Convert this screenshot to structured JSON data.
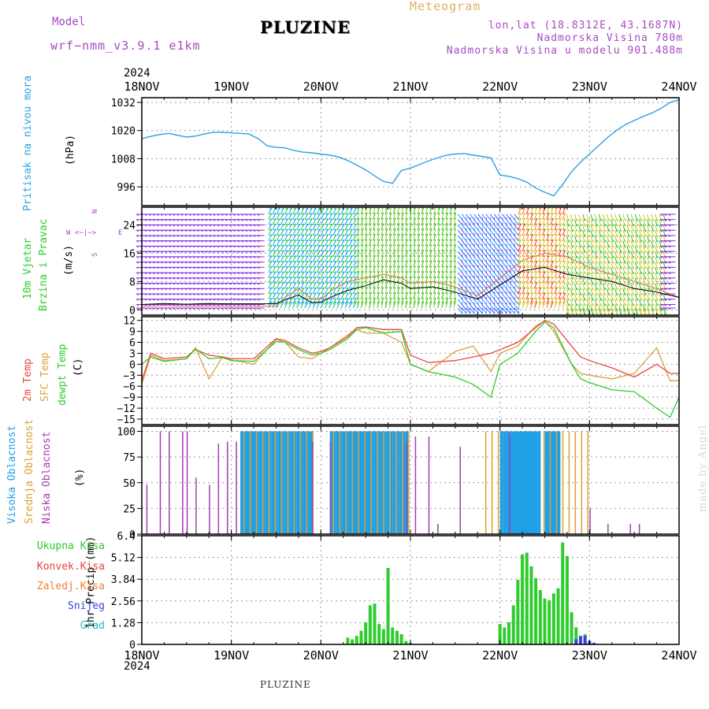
{
  "header": {
    "model_label": "Model",
    "model_name": "wrf−nmm_v3.9.1  e1km",
    "station": "PLUZINE",
    "meteogram_label": "Meteogram",
    "lonlat": "lon,lat (18.8312E, 43.1687N)",
    "altitude": "Nadmorska Visina 780m",
    "model_altitude": "Nadmorska Visina u modelu 901.488m"
  },
  "footer": {
    "station": "PLUZINE",
    "credit": "made by Angel"
  },
  "time_axis": {
    "year": "2024",
    "ticks": [
      "18NOV",
      "19NOV",
      "20NOV",
      "21NOV",
      "22NOV",
      "23NOV",
      "24NOV"
    ]
  },
  "colors": {
    "pressure": "#29a3e0",
    "temp2m": "#e8483c",
    "sfc_temp": "#e0a040",
    "dewpt": "#2ecc2e",
    "cloud_high": "#1fa0e6",
    "cloud_mid": "#e0a030",
    "cloud_low": "#a040b0",
    "precip_total": "#2ecc2e",
    "precip_conv": "#e84040",
    "precip_frozen": "#f08030",
    "snow": "#4040e0",
    "graupel": "#20c0c0"
  },
  "chart_data": [
    {
      "type": "line",
      "name_panel": "pressure",
      "ylabel_1": "Pritisak na nivou mora",
      "ylabel_2": "(hPa)",
      "yticks": [
        "1032",
        "1020",
        "1008",
        "996"
      ],
      "ylim": [
        988,
        1034
      ],
      "x_days": [
        0,
        0.1,
        0.2,
        0.3,
        0.4,
        0.5,
        0.6,
        0.7,
        0.8,
        0.9,
        1.0,
        1.1,
        1.2,
        1.3,
        1.4,
        1.5,
        1.6,
        1.7,
        1.8,
        1.9,
        2.0,
        2.1,
        2.2,
        2.3,
        2.4,
        2.5,
        2.6,
        2.7,
        2.8,
        2.9,
        3.0,
        3.1,
        3.2,
        3.3,
        3.4,
        3.5,
        3.6,
        3.7,
        3.8,
        3.9,
        4.0,
        4.1,
        4.2,
        4.3,
        4.4,
        4.5,
        4.6,
        4.7,
        4.8,
        4.9,
        5.0,
        5.1,
        5.2,
        5.3,
        5.4,
        5.5,
        5.6,
        5.7,
        5.8,
        5.9,
        6.0
      ],
      "series": [
        {
          "values": [
            1016.5,
            1017.5,
            1018.3,
            1018.8,
            1018.0,
            1017.2,
            1017.6,
            1018.6,
            1019.2,
            1019.3,
            1019.0,
            1018.8,
            1018.5,
            1016.5,
            1013.5,
            1012.8,
            1012.6,
            1011.5,
            1010.8,
            1010.5,
            1010.0,
            1009.5,
            1008.7,
            1007.2,
            1005.3,
            1003.2,
            1000.7,
            998.3,
            997.5,
            1003.0,
            1004.0,
            1005.5,
            1007.0,
            1008.3,
            1009.5,
            1010.0,
            1010.2,
            1009.5,
            1009.0,
            1008.3,
            1001.0,
            1000.5,
            999.5,
            998.0,
            995.5,
            993.7,
            992.2,
            997.0,
            1002.5,
            1006.5,
            1010.0,
            1013.5,
            1017.0,
            1020.0,
            1022.5,
            1024.3,
            1026.0,
            1027.5,
            1029.5,
            1032.0,
            1033.2
          ]
        }
      ]
    },
    {
      "type": "line",
      "name_panel": "wind",
      "ylabel_1": "10m Vjetar",
      "ylabel_2": "Brzina i Pravac",
      "ylabel_3": "(m/s)",
      "compass": {
        "n": "N",
        "s": "S",
        "e": "E",
        "w": "W"
      },
      "yticks": [
        "24",
        "16",
        "8",
        "0"
      ],
      "ylim": [
        -1.5,
        29
      ],
      "x_days": [
        0,
        0.25,
        0.5,
        0.75,
        1.0,
        1.25,
        1.5,
        1.6,
        1.75,
        1.9,
        2.0,
        2.15,
        2.3,
        2.5,
        2.7,
        2.9,
        3.0,
        3.25,
        3.5,
        3.75,
        4.0,
        4.25,
        4.5,
        4.75,
        5.0,
        5.25,
        5.5,
        5.75,
        6.0
      ],
      "series": [
        {
          "values": [
            1.5,
            1.8,
            1.6,
            1.8,
            1.7,
            1.7,
            1.7,
            2.8,
            4.2,
            2.0,
            2.2,
            4.0,
            5.5,
            6.8,
            8.5,
            7.5,
            6.0,
            6.5,
            5.0,
            3.0,
            7.0,
            11.0,
            12.0,
            10.0,
            9.0,
            8.0,
            6.0,
            5.0,
            3.5
          ]
        },
        {
          "values": [
            1.0,
            1.2,
            1.0,
            1.1,
            1.0,
            1.0,
            1.0,
            3.5,
            6.0,
            3.0,
            3.0,
            6.0,
            8.0,
            9.0,
            10.0,
            9.0,
            7.5,
            8.0,
            6.5,
            4.0,
            9.0,
            14.0,
            16.0,
            15.0,
            12.0,
            10.0,
            8.0,
            6.0,
            3.5
          ]
        }
      ]
    },
    {
      "type": "line",
      "name_panel": "temperature",
      "ylabel_1": "2m Temp",
      "ylabel_2": "SFC Temp",
      "ylabel_3": "dewpt Temp",
      "ylabel_4": "(C)",
      "yticks": [
        "12",
        "9",
        "6",
        "3",
        "0",
        "−3",
        "−6",
        "−9",
        "−12",
        "−15"
      ],
      "ylim": [
        -16.5,
        13
      ],
      "x_days": [
        0,
        0.1,
        0.25,
        0.5,
        0.6,
        0.75,
        0.9,
        1.0,
        1.25,
        1.5,
        1.6,
        1.75,
        1.9,
        2.0,
        2.1,
        2.3,
        2.4,
        2.5,
        2.7,
        2.9,
        3.0,
        3.2,
        3.5,
        3.7,
        3.9,
        4.0,
        4.2,
        4.4,
        4.5,
        4.6,
        4.8,
        4.9,
        5.0,
        5.25,
        5.5,
        5.75,
        5.9,
        6.0
      ],
      "series": [
        {
          "name": "2m Temp",
          "values": [
            -4.5,
            3.0,
            1.5,
            2.0,
            4.0,
            2.5,
            2.0,
            1.5,
            1.5,
            7.0,
            6.5,
            4.5,
            3.0,
            3.5,
            4.5,
            7.5,
            10.0,
            10.2,
            9.5,
            9.5,
            2.5,
            0.5,
            1.0,
            2.0,
            3.0,
            4.0,
            6.0,
            10.0,
            12.0,
            11.0,
            5.0,
            2.0,
            1.0,
            -1.0,
            -3.5,
            0.0,
            -2.5,
            -2.5
          ]
        },
        {
          "name": "SFC Temp",
          "values": [
            -5.5,
            2.5,
            1.0,
            1.5,
            4.5,
            -4.0,
            2.0,
            1.2,
            0.0,
            6.8,
            6.0,
            2.0,
            1.5,
            3.0,
            4.5,
            8.0,
            9.5,
            8.5,
            8.5,
            6.0,
            0.0,
            -2.0,
            3.5,
            5.0,
            -2.0,
            3.0,
            5.0,
            10.5,
            11.8,
            9.0,
            0.0,
            -2.5,
            -3.0,
            -4.0,
            -2.5,
            4.5,
            -4.5,
            -4.5
          ]
        },
        {
          "name": "dewpt Temp",
          "values": [
            0.0,
            2.0,
            0.8,
            1.5,
            4.2,
            1.5,
            1.8,
            1.0,
            0.8,
            6.2,
            6.0,
            4.0,
            2.5,
            3.0,
            4.0,
            7.0,
            9.5,
            10.0,
            8.5,
            9.0,
            0.0,
            -2.0,
            -3.5,
            -5.5,
            -9.0,
            0.0,
            3.0,
            9.0,
            11.5,
            10.0,
            0.0,
            -4.0,
            -5.0,
            -7.0,
            -7.5,
            -12.0,
            -14.5,
            -9.0
          ]
        }
      ]
    },
    {
      "type": "bar",
      "name_panel": "clouds",
      "ylabel_1": "Visoka Oblacnost",
      "ylabel_2": "Srednja Oblacnost",
      "ylabel_3": "Niska Oblacnost",
      "ylabel_4": "(%)",
      "yticks": [
        "100",
        "75",
        "50",
        "25",
        "0"
      ],
      "ylim": [
        0,
        105
      ],
      "series": [
        {
          "name": "high",
          "ranges": [
            [
              1.1,
              1.9
            ],
            [
              2.1,
              2.95
            ],
            [
              4.0,
              4.45
            ],
            [
              4.5,
              4.65
            ]
          ],
          "values": [
            100,
            100,
            100,
            100
          ]
        },
        {
          "name": "mid",
          "ranges": [
            [
              1.1,
              1.9
            ],
            [
              2.1,
              2.95
            ],
            [
              3.8,
              4.0
            ],
            [
              4.45,
              4.95
            ]
          ],
          "values": [
            100,
            100,
            100,
            100
          ]
        },
        {
          "name": "low_spikes",
          "x_days": [
            0.05,
            0.2,
            0.3,
            0.45,
            0.5,
            0.6,
            0.75,
            0.85,
            0.95,
            1.05,
            1.9,
            2.1,
            2.95,
            3.05,
            3.2,
            3.3,
            3.55,
            4.1,
            5.0,
            5.2,
            5.45,
            5.55
          ],
          "values": [
            48,
            100,
            100,
            100,
            100,
            55,
            48,
            88,
            90,
            90,
            90,
            90,
            90,
            95,
            95,
            10,
            85,
            98,
            25,
            10,
            10,
            10
          ]
        }
      ]
    },
    {
      "type": "bar",
      "name_panel": "precipitation",
      "ylabel": "1hr Precip (mm)",
      "yticks": [
        "6.4",
        "5.12",
        "3.84",
        "2.56",
        "1.28",
        "0"
      ],
      "ylim": [
        0,
        6.4
      ],
      "legend": [
        "Ukupna Kisa",
        "Konvek.Kisa",
        "Zaledj.Kisa",
        "Snijeg",
        "Grad"
      ],
      "series": [
        {
          "name": "total",
          "x_days": [
            2.3,
            2.35,
            2.4,
            2.45,
            2.5,
            2.55,
            2.6,
            2.65,
            2.7,
            2.75,
            2.8,
            2.85,
            2.9,
            2.95,
            3.0,
            4.0,
            4.05,
            4.1,
            4.15,
            4.2,
            4.25,
            4.3,
            4.35,
            4.4,
            4.45,
            4.5,
            4.55,
            4.6,
            4.65,
            4.7,
            4.75,
            4.8,
            4.85,
            4.9,
            4.95,
            5.0
          ],
          "values": [
            0.4,
            0.3,
            0.5,
            0.8,
            1.3,
            2.3,
            2.4,
            1.2,
            0.9,
            4.5,
            1.0,
            0.8,
            0.6,
            0.2,
            0.1,
            1.2,
            1.0,
            1.3,
            2.3,
            3.8,
            5.3,
            5.4,
            4.6,
            3.9,
            3.2,
            2.7,
            2.6,
            3.0,
            3.3,
            6.0,
            5.2,
            1.9,
            1.0,
            0.3,
            0.6,
            0.2
          ]
        },
        {
          "name": "snow",
          "x_days": [
            4.85,
            4.9,
            4.95,
            5.0,
            5.05
          ],
          "values": [
            0.3,
            0.5,
            0.5,
            0.2,
            0.1
          ]
        }
      ]
    }
  ]
}
